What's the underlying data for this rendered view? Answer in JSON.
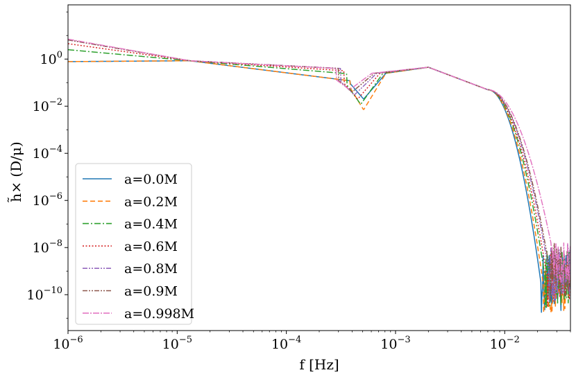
{
  "chart_data": {
    "type": "line",
    "title": "",
    "xlabel": "f [Hz]",
    "ylabel": "h̃× (D/μ)",
    "xscale": "log",
    "yscale": "log",
    "xlim": [
      1e-06,
      0.04
    ],
    "ylim": [
      3e-12,
      200.0
    ],
    "grid": false,
    "legend_placement": "lower-left",
    "x_ticks": [
      {
        "value": 1e-06,
        "base": "10",
        "exp": "−6"
      },
      {
        "value": 1e-05,
        "base": "10",
        "exp": "−5"
      },
      {
        "value": 0.0001,
        "base": "10",
        "exp": "−4"
      },
      {
        "value": 0.001,
        "base": "10",
        "exp": "−3"
      },
      {
        "value": 0.01,
        "base": "10",
        "exp": "−2"
      }
    ],
    "y_ticks": [
      {
        "value": 1,
        "base": "10",
        "exp": "0"
      },
      {
        "value": 0.01,
        "base": "10",
        "exp": "−2"
      },
      {
        "value": 0.0001,
        "base": "10",
        "exp": "−4"
      },
      {
        "value": 1e-06,
        "base": "10",
        "exp": "−6"
      },
      {
        "value": 1e-08,
        "base": "10",
        "exp": "−8"
      },
      {
        "value": 1e-10,
        "base": "10",
        "exp": "−10"
      }
    ],
    "series": [
      {
        "name": "a=0.0M",
        "color": "#1f77b4",
        "dash": "",
        "low_plateau": 0.78,
        "dip_f": 0.00051,
        "dip_depth": 0.02,
        "inspiral_amp": 0.3,
        "cutoff_f": 0.0215,
        "noise_level": 3e-10,
        "final": 1e-10
      },
      {
        "name": "a=0.2M",
        "color": "#ff7f0e",
        "dash": "7,4",
        "low_plateau": 0.78,
        "dip_f": 0.00051,
        "dip_depth": 0.007,
        "inspiral_amp": 0.3,
        "cutoff_f": 0.0225,
        "noise_level": 3e-10,
        "final": 1e-10
      },
      {
        "name": "a=0.4M",
        "color": "#2ca02c",
        "dash": "9,3,2,3",
        "low_plateau": 2.5,
        "dip_f": 0.00048,
        "dip_depth": 0.012,
        "inspiral_amp": 0.6,
        "cutoff_f": 0.0235,
        "noise_level": 5e-10,
        "final": 1e-10
      },
      {
        "name": "a=0.6M",
        "color": "#d62728",
        "dash": "2,2.5",
        "low_plateau": 4.5,
        "dip_f": 0.00045,
        "dip_depth": 0.02,
        "inspiral_amp": 0.8,
        "cutoff_f": 0.0245,
        "noise_level": 5e-10,
        "final": 1e-10
      },
      {
        "name": "a=0.8M",
        "color": "#9467bd",
        "dash": "7,2,2,2,2,2",
        "low_plateau": 6.5,
        "dip_f": 0.00042,
        "dip_depth": 0.03,
        "inspiral_amp": 1.0,
        "cutoff_f": 0.0255,
        "noise_level": 8e-10,
        "final": 1e-10
      },
      {
        "name": "a=0.9M",
        "color": "#8c564b",
        "dash": "7,2,2,2,2,2",
        "low_plateau": 6.5,
        "dip_f": 0.0004,
        "dip_depth": 0.04,
        "inspiral_amp": 1.0,
        "cutoff_f": 0.026,
        "noise_level": 1e-09,
        "final": 1e-10
      },
      {
        "name": "a=0.998M",
        "color": "#e377c2",
        "dash": "9,2,2,2",
        "low_plateau": 7.0,
        "dip_f": 0.00038,
        "dip_depth": 0.05,
        "inspiral_amp": 1.0,
        "cutoff_f": 0.0265,
        "noise_level": 1.6e-08,
        "final": 1.2e-08
      }
    ]
  }
}
